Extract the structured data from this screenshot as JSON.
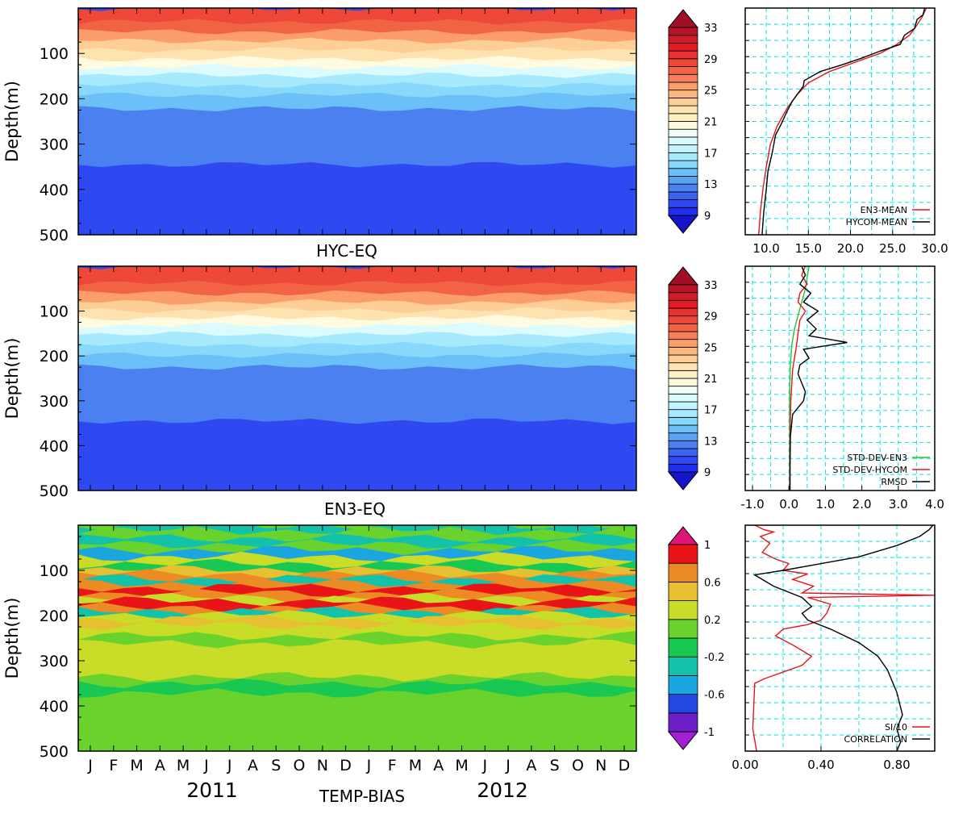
{
  "figure_title": "TEMP-BIAS",
  "colors": {
    "cyan_grid": "#00e5e5",
    "red": "#e8141c",
    "black": "#000000",
    "green": "#2cc22c"
  },
  "chart_data": [
    {
      "id": "hyc-eq",
      "type": "heatmap",
      "title": "HYC-EQ",
      "ylabel": "Depth(m)",
      "yticks": [
        "100",
        "200",
        "300",
        "400",
        "500"
      ],
      "ylim": [
        0,
        500
      ],
      "months": 24,
      "bands": [
        {
          "d": 0,
          "v": 28.5
        },
        {
          "d": 30,
          "v": 27.5
        },
        {
          "d": 52,
          "v": 25.8
        },
        {
          "d": 72,
          "v": 23.8
        },
        {
          "d": 92,
          "v": 22.3
        },
        {
          "d": 112,
          "v": 20.2
        },
        {
          "d": 130,
          "v": 18.2
        },
        {
          "d": 148,
          "v": 16.8
        },
        {
          "d": 170,
          "v": 15.2
        },
        {
          "d": 192,
          "v": 14.0
        },
        {
          "d": 222,
          "v": 12.5
        },
        {
          "d": 345,
          "v": 10.5
        }
      ],
      "colorbar": {
        "labels": [
          "33",
          "29",
          "25",
          "21",
          "17",
          "13",
          "9"
        ],
        "levels": [
          9,
          10,
          11,
          12,
          13,
          14,
          15,
          16,
          17,
          18,
          19,
          20,
          21,
          22,
          23,
          24,
          25,
          26,
          27,
          28,
          29,
          30,
          31,
          32,
          33
        ],
        "colors": [
          "#1e2fef",
          "#2e49f2",
          "#3c63f0",
          "#4a80f0",
          "#56a3f4",
          "#6cc0f8",
          "#88d8fb",
          "#a8eafd",
          "#c4f4fd",
          "#dcfbfe",
          "#f0fef8",
          "#fffbe0",
          "#fff0c4",
          "#fee3b0",
          "#fdce96",
          "#fdb880",
          "#fb9e6c",
          "#f88058",
          "#f26244",
          "#ee4838",
          "#ea3030",
          "#e21c24",
          "#d01c28",
          "#b81228"
        ],
        "under": "#1414c8",
        "over": "#a00e28"
      }
    },
    {
      "id": "en3-eq",
      "type": "heatmap",
      "title": "EN3-EQ",
      "ylabel": "Depth(m)",
      "yticks": [
        "100",
        "200",
        "300",
        "400",
        "500"
      ],
      "ylim": [
        0,
        500
      ],
      "months": 24,
      "bands": [
        {
          "d": 0,
          "v": 28.3
        },
        {
          "d": 38,
          "v": 27.0
        },
        {
          "d": 60,
          "v": 25.5
        },
        {
          "d": 80,
          "v": 23.7
        },
        {
          "d": 98,
          "v": 22.0
        },
        {
          "d": 115,
          "v": 20.2
        },
        {
          "d": 132,
          "v": 18.4
        },
        {
          "d": 152,
          "v": 16.5
        },
        {
          "d": 175,
          "v": 15.0
        },
        {
          "d": 198,
          "v": 14.0
        },
        {
          "d": 225,
          "v": 12.5
        },
        {
          "d": 345,
          "v": 10.5
        }
      ],
      "colorbar": {
        "labels": [
          "33",
          "29",
          "25",
          "21",
          "17",
          "13",
          "9"
        ],
        "levels": [
          9,
          10,
          11,
          12,
          13,
          14,
          15,
          16,
          17,
          18,
          19,
          20,
          21,
          22,
          23,
          24,
          25,
          26,
          27,
          28,
          29,
          30,
          31,
          32,
          33
        ],
        "colors": [
          "#1e2fef",
          "#2e49f2",
          "#3c63f0",
          "#4a80f0",
          "#56a3f4",
          "#6cc0f8",
          "#88d8fb",
          "#a8eafd",
          "#c4f4fd",
          "#dcfbfe",
          "#f0fef8",
          "#fffbe0",
          "#fff0c4",
          "#fee3b0",
          "#fdce96",
          "#fdb880",
          "#fb9e6c",
          "#f88058",
          "#f26244",
          "#ee4838",
          "#ea3030",
          "#e21c24",
          "#d01c28",
          "#b81228"
        ],
        "under": "#1414c8",
        "over": "#a00e28"
      }
    },
    {
      "id": "temp-bias",
      "type": "heatmap",
      "title": "TEMP-BIAS",
      "ylabel": "Depth(m)",
      "yticks": [
        "100",
        "200",
        "300",
        "400",
        "500"
      ],
      "ylim": [
        0,
        500
      ],
      "months": 24,
      "xticks": [
        "J",
        "F",
        "M",
        "A",
        "M",
        "J",
        "J",
        "A",
        "S",
        "O",
        "N",
        "D",
        "J",
        "F",
        "M",
        "A",
        "M",
        "J",
        "J",
        "A",
        "S",
        "O",
        "N",
        "D"
      ],
      "years": [
        "2011",
        "2012"
      ],
      "bands": [
        {
          "d": 0,
          "v": -0.3
        },
        {
          "d": 12,
          "v": 0.05
        },
        {
          "d": 28,
          "v": -0.4
        },
        {
          "d": 42,
          "v": 0.1
        },
        {
          "d": 55,
          "v": -0.5
        },
        {
          "d": 70,
          "v": 0.3
        },
        {
          "d": 85,
          "v": -0.1
        },
        {
          "d": 98,
          "v": 0.5
        },
        {
          "d": 108,
          "v": 0.75
        },
        {
          "d": 118,
          "v": -0.3
        },
        {
          "d": 128,
          "v": 0.6
        },
        {
          "d": 138,
          "v": 0.9
        },
        {
          "d": 150,
          "v": 0.7
        },
        {
          "d": 160,
          "v": 0.3
        },
        {
          "d": 168,
          "v": 0.95
        },
        {
          "d": 182,
          "v": 0.6
        },
        {
          "d": 190,
          "v": -0.4
        },
        {
          "d": 198,
          "v": 0.25
        },
        {
          "d": 208,
          "v": 0.55
        },
        {
          "d": 222,
          "v": 0.2
        },
        {
          "d": 245,
          "v": 0.05
        },
        {
          "d": 262,
          "v": 0.25
        },
        {
          "d": 285,
          "v": 0.35
        },
        {
          "d": 335,
          "v": 0.15
        },
        {
          "d": 350,
          "v": -0.05
        },
        {
          "d": 372,
          "v": 0.05
        },
        {
          "d": 405,
          "v": 0.1
        },
        {
          "d": 440,
          "v": 0.15
        },
        {
          "d": 470,
          "v": 0.05
        },
        {
          "d": 488,
          "v": 0.12
        }
      ],
      "colorbar": {
        "labels": [
          "1",
          "0.6",
          "0.2",
          "-0.2",
          "-0.6",
          "-1"
        ],
        "levels": [
          -1,
          -0.8,
          -0.6,
          -0.4,
          -0.2,
          0,
          0.2,
          0.4,
          0.6,
          0.8,
          1
        ],
        "colors": [
          "#6c1ec8",
          "#2448e4",
          "#1ca6e0",
          "#14c2aa",
          "#18c852",
          "#6ad22c",
          "#c8dc28",
          "#e6c030",
          "#ec8a24",
          "#e81418"
        ],
        "under": "#a41ed2",
        "over": "#e01478"
      }
    },
    {
      "id": "mean-profile",
      "type": "line",
      "xticks": [
        "10.0",
        "15.0",
        "20.0",
        "25.0",
        "30.0"
      ],
      "xlim": [
        7.5,
        30
      ],
      "ylim": [
        0,
        500
      ],
      "series": [
        {
          "name": "EN3-MEAN",
          "color": "#e8141c",
          "points": [
            [
              29,
              0
            ],
            [
              28.5,
              20
            ],
            [
              27.8,
              40
            ],
            [
              27,
              60
            ],
            [
              25.5,
              80
            ],
            [
              23.5,
              100
            ],
            [
              20.5,
              120
            ],
            [
              17.5,
              140
            ],
            [
              15,
              165
            ],
            [
              13.7,
              190
            ],
            [
              12.5,
              220
            ],
            [
              11.3,
              260
            ],
            [
              10.5,
              300
            ],
            [
              10,
              350
            ],
            [
              9.6,
              400
            ],
            [
              9.3,
              450
            ],
            [
              9.1,
              500
            ]
          ]
        },
        {
          "name": "HYCOM-MEAN",
          "color": "#000000",
          "points": [
            [
              28.8,
              0
            ],
            [
              28.6,
              15
            ],
            [
              27.9,
              25
            ],
            [
              27.6,
              45
            ],
            [
              26.4,
              60
            ],
            [
              25.9,
              80
            ],
            [
              23.5,
              95
            ],
            [
              21.4,
              110
            ],
            [
              19,
              125
            ],
            [
              16.4,
              140
            ],
            [
              14.5,
              160
            ],
            [
              14.4,
              172
            ],
            [
              13.1,
              205
            ],
            [
              12.4,
              230
            ],
            [
              11.8,
              255
            ],
            [
              11.1,
              280
            ],
            [
              10.7,
              320
            ],
            [
              10.2,
              360
            ],
            [
              10,
              400
            ],
            [
              9.7,
              450
            ],
            [
              9.5,
              500
            ]
          ]
        }
      ]
    },
    {
      "id": "std-profile",
      "type": "line",
      "xticks": [
        "-1.0",
        "0.0",
        "1.0",
        "2.0",
        "3.0",
        "4.0"
      ],
      "xlim": [
        -1.2,
        4
      ],
      "ylim": [
        0,
        500
      ],
      "series": [
        {
          "name": "STD-DEV-EN3",
          "color": "#2cc22c",
          "points": [
            [
              0.55,
              0
            ],
            [
              0.5,
              25
            ],
            [
              0.45,
              50
            ],
            [
              0.35,
              80
            ],
            [
              0.25,
              110
            ],
            [
              0.15,
              140
            ],
            [
              0.08,
              175
            ],
            [
              0.04,
              220
            ],
            [
              0.02,
              280
            ],
            [
              0.02,
              350
            ],
            [
              0.02,
              420
            ],
            [
              0.02,
              500
            ]
          ]
        },
        {
          "name": "STD-DEV-HYCOM",
          "color": "#e8141c",
          "points": [
            [
              0.45,
              0
            ],
            [
              0.35,
              20
            ],
            [
              0.5,
              40
            ],
            [
              0.3,
              60
            ],
            [
              0.25,
              80
            ],
            [
              0.45,
              100
            ],
            [
              0.3,
              120
            ],
            [
              0.25,
              150
            ],
            [
              0.2,
              180
            ],
            [
              0.1,
              230
            ],
            [
              0.05,
              300
            ],
            [
              0.03,
              380
            ],
            [
              0.02,
              500
            ]
          ]
        },
        {
          "name": "RMSD",
          "color": "#000000",
          "points": [
            [
              0.35,
              0
            ],
            [
              0.45,
              20
            ],
            [
              0.3,
              40
            ],
            [
              0.6,
              60
            ],
            [
              0.4,
              80
            ],
            [
              0.8,
              100
            ],
            [
              0.5,
              120
            ],
            [
              0.75,
              140
            ],
            [
              0.55,
              155
            ],
            [
              1.6,
              170
            ],
            [
              0.4,
              185
            ],
            [
              0.55,
              205
            ],
            [
              0.3,
              220
            ],
            [
              0.25,
              240
            ],
            [
              0.35,
              260
            ],
            [
              0.45,
              280
            ],
            [
              0.4,
              300
            ],
            [
              0.1,
              330
            ],
            [
              0.04,
              380
            ],
            [
              0.03,
              450
            ],
            [
              0.03,
              500
            ]
          ]
        }
      ]
    },
    {
      "id": "si-corr-profile",
      "type": "line",
      "xticks": [
        "0.00",
        "0.40",
        "0.80"
      ],
      "xlim": [
        0,
        1
      ],
      "ylim": [
        0,
        500
      ],
      "series": [
        {
          "name": "SI/10",
          "color": "#e8141c",
          "points": [
            [
              0.05,
              0
            ],
            [
              0.1,
              10
            ],
            [
              0.15,
              15
            ],
            [
              0.08,
              25
            ],
            [
              0.13,
              40
            ],
            [
              0.09,
              60
            ],
            [
              0.16,
              75
            ],
            [
              0.23,
              85
            ],
            [
              0.2,
              100
            ],
            [
              0.33,
              108
            ],
            [
              0.25,
              120
            ],
            [
              0.36,
              135
            ],
            [
              0.3,
              150
            ],
            [
              1,
              155
            ],
            [
              0.33,
              160
            ],
            [
              0.45,
              175
            ],
            [
              0.43,
              195
            ],
            [
              0.4,
              210
            ],
            [
              0.33,
              220
            ],
            [
              0.2,
              230
            ],
            [
              0.16,
              245
            ],
            [
              0.25,
              265
            ],
            [
              0.35,
              290
            ],
            [
              0.3,
              310
            ],
            [
              0.1,
              340
            ],
            [
              0.05,
              350
            ],
            [
              0.04,
              450
            ],
            [
              0.06,
              500
            ]
          ]
        },
        {
          "name": "CORRELATION",
          "color": "#000000",
          "points": [
            [
              0.99,
              0
            ],
            [
              0.97,
              10
            ],
            [
              0.92,
              25
            ],
            [
              0.8,
              45
            ],
            [
              0.6,
              70
            ],
            [
              0.4,
              85
            ],
            [
              0.2,
              100
            ],
            [
              0.05,
              110
            ],
            [
              0.15,
              135
            ],
            [
              0.3,
              160
            ],
            [
              0.35,
              180
            ],
            [
              0.3,
              195
            ],
            [
              0.33,
              210
            ],
            [
              0.45,
              230
            ],
            [
              0.6,
              260
            ],
            [
              0.7,
              290
            ],
            [
              0.75,
              320
            ],
            [
              0.8,
              370
            ],
            [
              0.83,
              420
            ],
            [
              0.8,
              450
            ],
            [
              0.82,
              480
            ],
            [
              0.8,
              500
            ]
          ]
        }
      ]
    }
  ]
}
